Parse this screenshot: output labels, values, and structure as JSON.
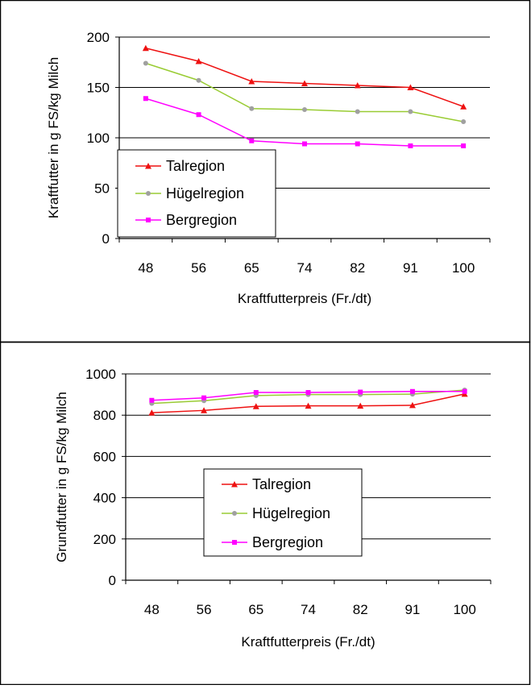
{
  "chart_data": [
    {
      "type": "line",
      "xlabel": "Kraftfutterpreis (Fr./dt)",
      "ylabel": "Kraftfutter in g FS/kg Milch",
      "categories": [
        "48",
        "56",
        "65",
        "74",
        "82",
        "91",
        "100"
      ],
      "ylim": [
        0,
        200
      ],
      "yticks": [
        "0",
        "50",
        "100",
        "150",
        "200"
      ],
      "grid": true,
      "legend": "bottom-left",
      "series": [
        {
          "name": "Talregion",
          "color": "#ee1111",
          "marker": "triangle",
          "values": [
            189,
            176,
            156,
            154,
            152,
            150,
            131
          ]
        },
        {
          "name": "Hügelregion",
          "color": "#99cc33",
          "marker": "circle",
          "values": [
            174,
            157,
            129,
            128,
            126,
            126,
            116
          ]
        },
        {
          "name": "Bergregion",
          "color": "#ff00ff",
          "marker": "square",
          "values": [
            139,
            123,
            97,
            94,
            94,
            92,
            92
          ]
        }
      ]
    },
    {
      "type": "line",
      "xlabel": "Kraftfutterpreis (Fr./dt)",
      "ylabel": "Grundfutter in g FS/kg Milch",
      "categories": [
        "48",
        "56",
        "65",
        "74",
        "82",
        "91",
        "100"
      ],
      "ylim": [
        0,
        1000
      ],
      "yticks": [
        "0",
        "200",
        "400",
        "600",
        "800",
        "1000"
      ],
      "grid": true,
      "legend": "center",
      "series": [
        {
          "name": "Talregion",
          "color": "#ee1111",
          "marker": "triangle",
          "values": [
            812,
            823,
            843,
            845,
            845,
            848,
            903
          ]
        },
        {
          "name": "Hügelregion",
          "color": "#99cc33",
          "marker": "circle",
          "values": [
            857,
            870,
            895,
            900,
            900,
            902,
            922
          ]
        },
        {
          "name": "Bergregion",
          "color": "#ff00ff",
          "marker": "square",
          "values": [
            872,
            884,
            910,
            910,
            912,
            915,
            915
          ]
        }
      ]
    }
  ]
}
